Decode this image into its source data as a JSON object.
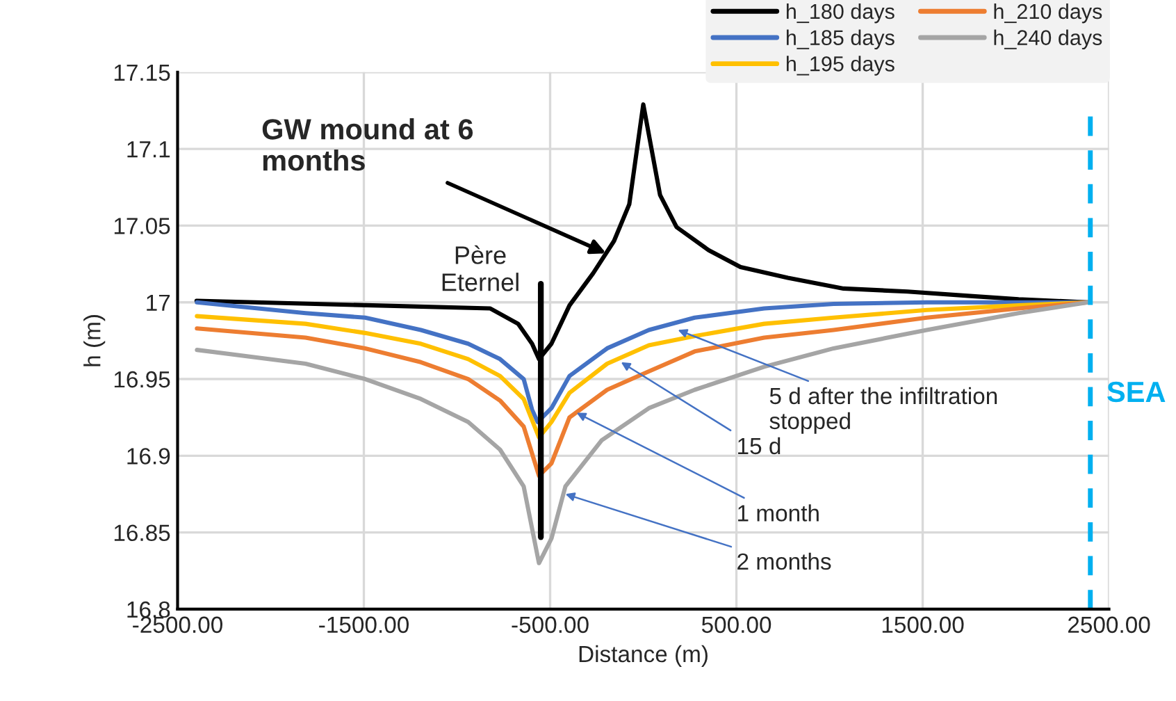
{
  "chart_data": {
    "type": "line",
    "xlabel": "Distance (m)",
    "ylabel": "h (m)",
    "xlim": [
      -2500,
      2500
    ],
    "ylim": [
      16.8,
      17.15
    ],
    "xticks": [
      {
        "value": -2500,
        "label": "-2500.00"
      },
      {
        "value": -1500,
        "label": "-1500.00"
      },
      {
        "value": -500,
        "label": "-500.00"
      },
      {
        "value": 500,
        "label": "500.00"
      },
      {
        "value": 1500,
        "label": "1500.00"
      },
      {
        "value": 2500,
        "label": "2500.00"
      }
    ],
    "yticks": [
      16.8,
      16.85,
      16.9,
      16.95,
      17,
      17.05,
      17.1,
      17.15
    ],
    "grid": true,
    "legend": "top right",
    "series": [
      {
        "name": "h_180 days",
        "color": "#000000",
        "x": [
          -2398,
          -821,
          -672,
          -597,
          -560,
          -493,
          -396,
          -269,
          -157,
          -75,
          0,
          90,
          179,
          351,
          522,
          776,
          1075,
          1418,
          1769,
          2015,
          2388
        ],
        "values": [
          17.001,
          16.996,
          16.986,
          16.973,
          16.963,
          16.973,
          16.998,
          17.019,
          17.04,
          17.064,
          17.129,
          17.07,
          17.049,
          17.034,
          17.023,
          17.016,
          17.009,
          17.007,
          17.004,
          17.002,
          17.0
        ]
      },
      {
        "name": "h_185 days",
        "color": "#4472c4",
        "x": [
          -2396,
          -1813,
          -1493,
          -1194,
          -940,
          -769,
          -642,
          -597,
          -567,
          -493,
          -396,
          -194,
          30,
          276,
          649,
          1022,
          1522,
          2388
        ],
        "values": [
          17.0,
          16.993,
          16.99,
          16.982,
          16.973,
          16.963,
          16.95,
          16.93,
          16.922,
          16.931,
          16.952,
          16.97,
          16.982,
          16.99,
          16.996,
          16.999,
          17.0,
          17.0
        ]
      },
      {
        "name": "h_195 days",
        "color": "#ffc000",
        "x": [
          -2396,
          -1813,
          -1493,
          -1194,
          -940,
          -769,
          -642,
          -560,
          -493,
          -396,
          -194,
          30,
          276,
          649,
          1022,
          1522,
          2015,
          2388
        ],
        "values": [
          16.991,
          16.986,
          16.98,
          16.973,
          16.963,
          16.952,
          16.937,
          16.912,
          16.922,
          16.941,
          16.96,
          16.972,
          16.978,
          16.986,
          16.99,
          16.995,
          16.998,
          17.0
        ]
      },
      {
        "name": "h_210 days",
        "color": "#ed7d31",
        "x": [
          -2396,
          -1813,
          -1493,
          -1194,
          -940,
          -769,
          -642,
          -560,
          -493,
          -396,
          -194,
          30,
          276,
          649,
          1022,
          1522,
          2015,
          2388
        ],
        "values": [
          16.983,
          16.977,
          16.97,
          16.961,
          16.95,
          16.936,
          16.919,
          16.887,
          16.895,
          16.925,
          16.943,
          16.955,
          16.968,
          16.977,
          16.982,
          16.99,
          16.996,
          17.0
        ]
      },
      {
        "name": "h_240 days",
        "color": "#a5a5a5",
        "x": [
          -2396,
          -1813,
          -1493,
          -1194,
          -940,
          -769,
          -642,
          -560,
          -493,
          -418,
          -224,
          30,
          276,
          649,
          1022,
          1522,
          2015,
          2388
        ],
        "values": [
          16.969,
          16.96,
          16.95,
          16.937,
          16.922,
          16.904,
          16.88,
          16.83,
          16.846,
          16.88,
          16.91,
          16.931,
          16.943,
          16.958,
          16.97,
          16.982,
          16.993,
          17.0
        ]
      },
      {
        "type": "line",
        "color": "#000000",
        "x": [
          -550,
          -550
        ],
        "values": [
          17.012,
          16.847
        ]
      }
    ],
    "ref_lines": [
      {
        "axis": "x",
        "value": 2400,
        "label": "SEA",
        "color": "#00b0f0",
        "line_style": "dashed"
      }
    ],
    "annotations": [
      {
        "text": "GW mound at 6\nmonths",
        "x": -200,
        "y": 17.032
      },
      "Père\nEternel",
      {
        "text": "5 d after the infiltration\nstopped",
        "x": 186,
        "y": 16.982
      },
      {
        "text": "15 d",
        "x": -119,
        "y": 16.961
      },
      {
        "text": "1 month",
        "x": -358,
        "y": 16.928
      },
      {
        "text": "2 months",
        "x": -418,
        "y": 16.875
      }
    ]
  }
}
